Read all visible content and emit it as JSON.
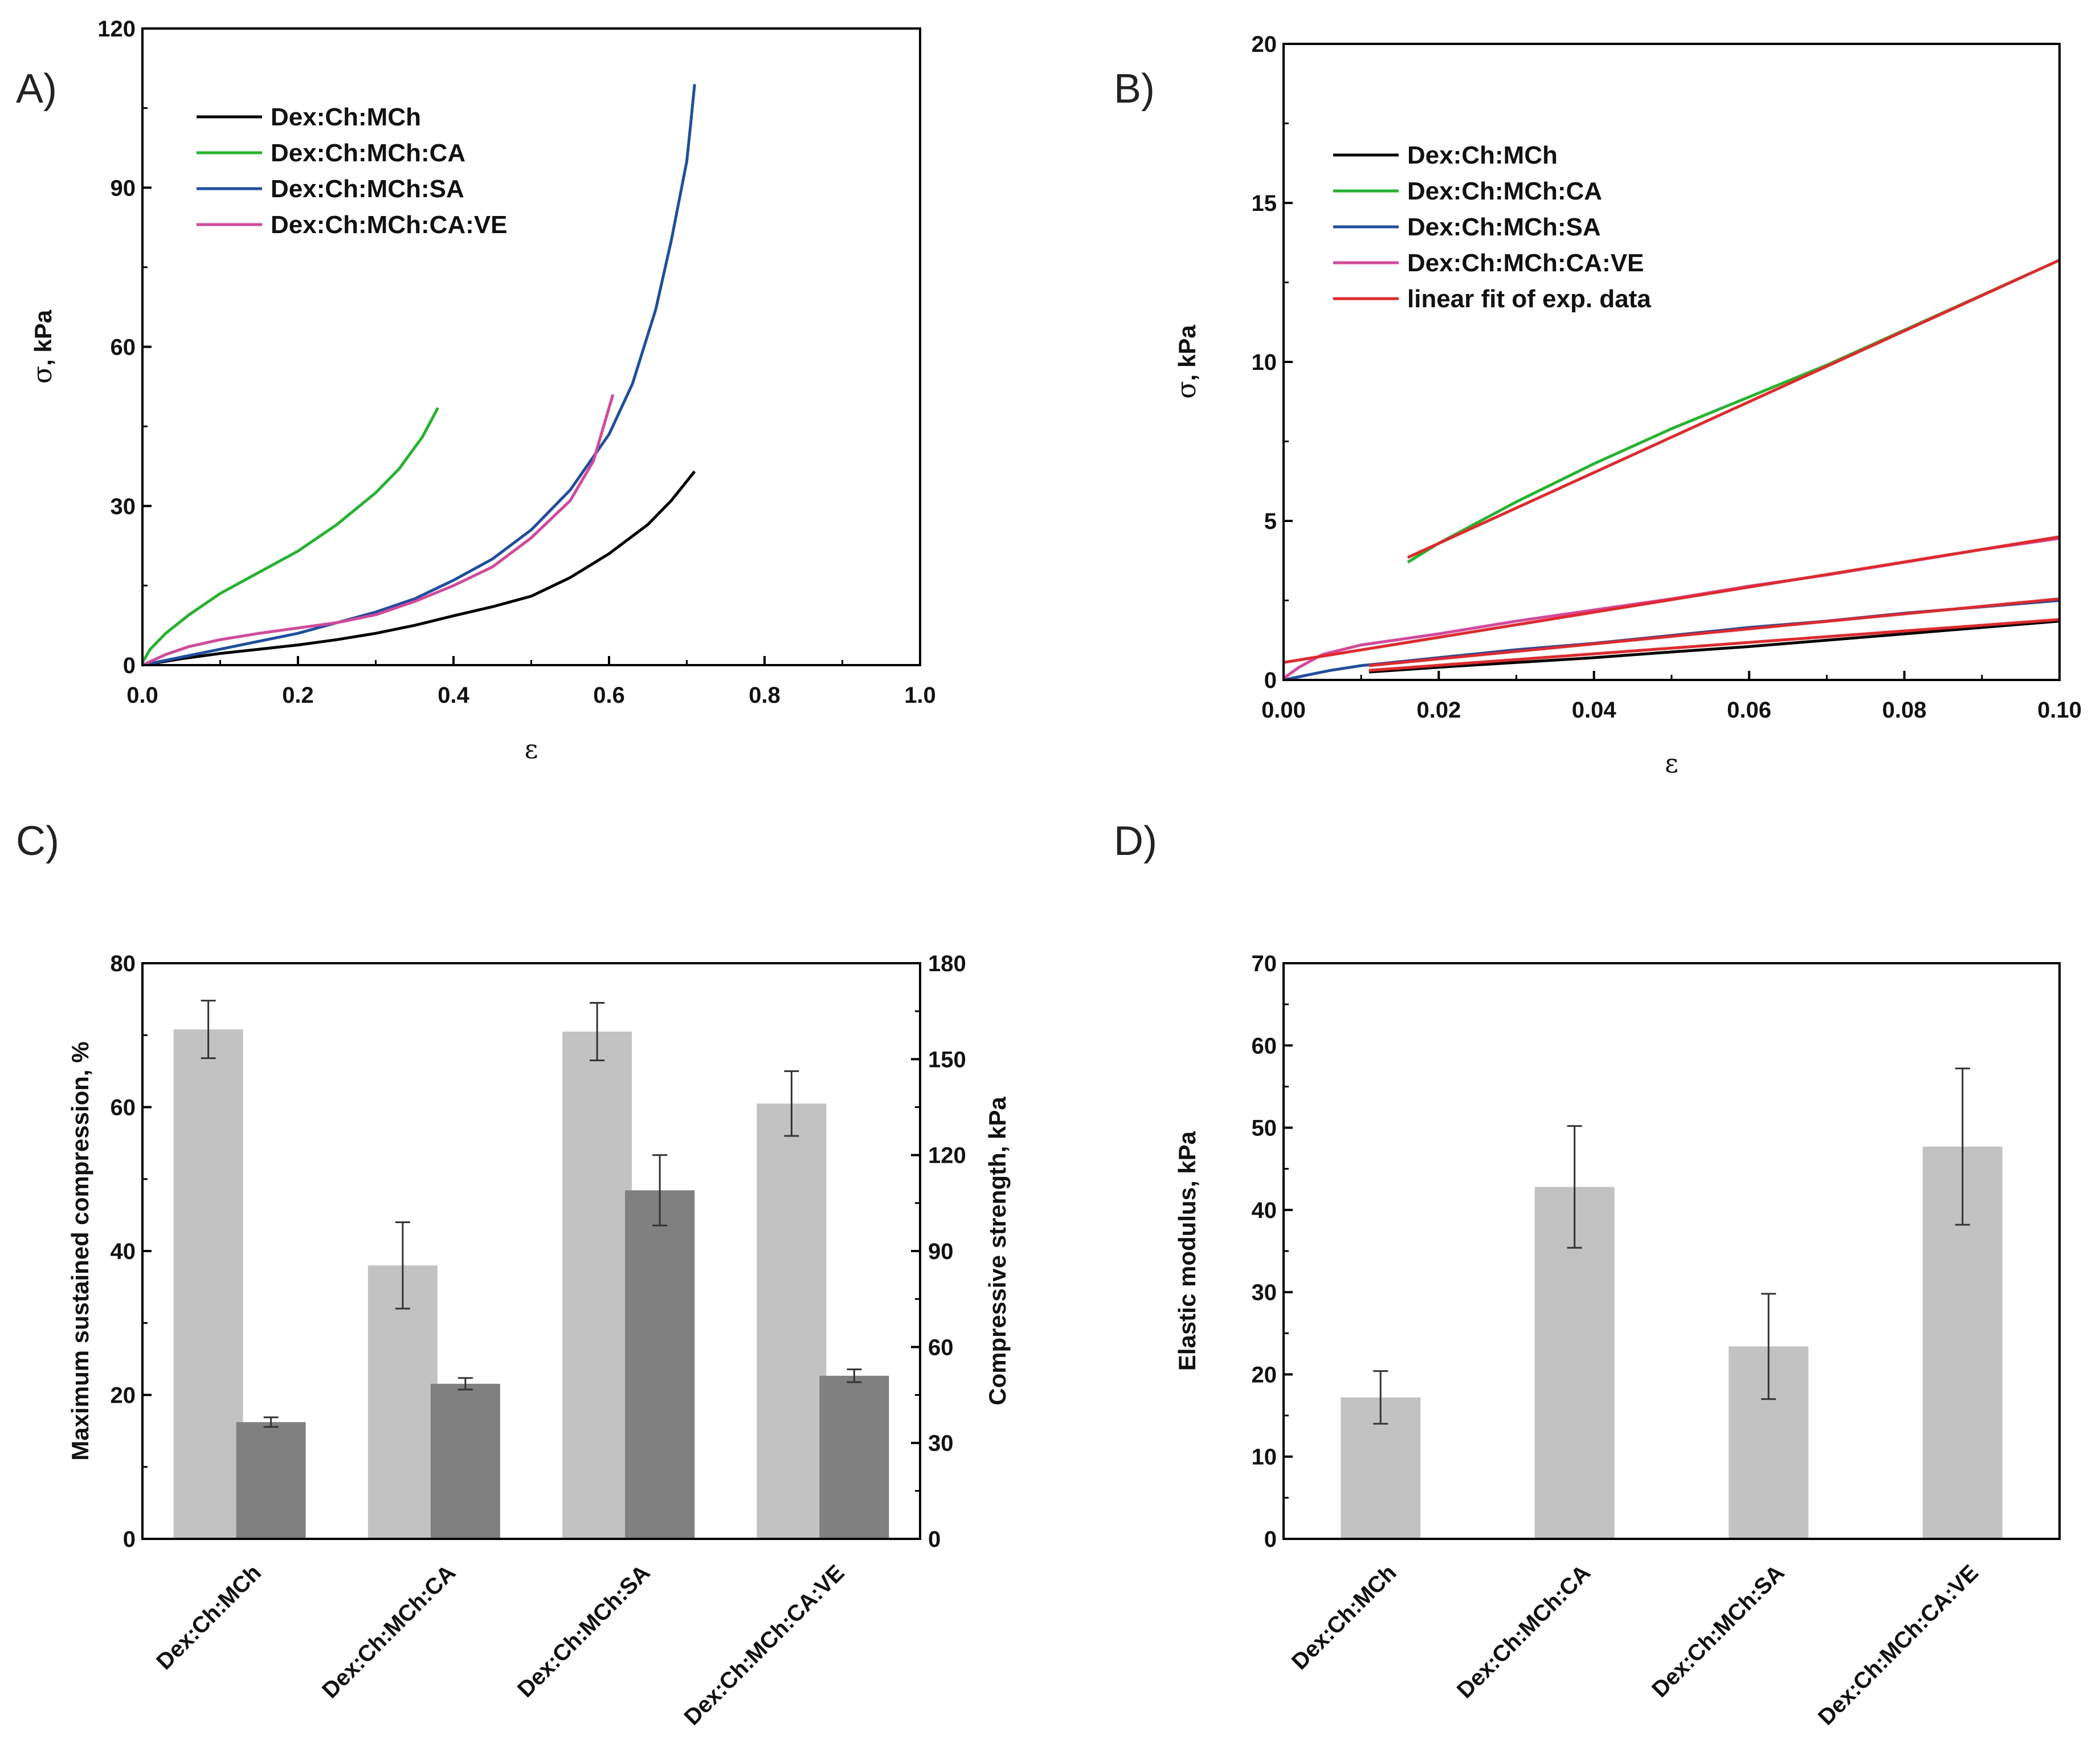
{
  "panels": {
    "A": {
      "label": "A)",
      "chart_data": {
        "type": "line",
        "xlabel": "ε",
        "ylabel_symbol": "σ",
        "ylabel_unit": ", kPa",
        "xlim": [
          0,
          1.0
        ],
        "ylim": [
          0,
          120
        ],
        "xticks": [
          "0.0",
          "0.2",
          "0.4",
          "0.6",
          "0.8",
          "1.0"
        ],
        "yticks": [
          "0",
          "30",
          "60",
          "90",
          "120"
        ],
        "legend_position": "top-left",
        "series": [
          {
            "name": "Dex:Ch:MCh",
            "color": "#000000",
            "points": [
              [
                0,
                0
              ],
              [
                0.05,
                1.2
              ],
              [
                0.1,
                2.2
              ],
              [
                0.15,
                3.0
              ],
              [
                0.2,
                3.8
              ],
              [
                0.25,
                4.8
              ],
              [
                0.3,
                6.0
              ],
              [
                0.35,
                7.5
              ],
              [
                0.4,
                9.3
              ],
              [
                0.45,
                11.0
              ],
              [
                0.5,
                13.0
              ],
              [
                0.55,
                16.5
              ],
              [
                0.6,
                21.0
              ],
              [
                0.65,
                26.5
              ],
              [
                0.68,
                31.0
              ],
              [
                0.71,
                36.5
              ]
            ]
          },
          {
            "name": "Dex:Ch:MCh:CA",
            "color": "#1fb62a",
            "points": [
              [
                0,
                0.5
              ],
              [
                0.01,
                3.0
              ],
              [
                0.03,
                6.0
              ],
              [
                0.06,
                9.5
              ],
              [
                0.1,
                13.5
              ],
              [
                0.15,
                17.5
              ],
              [
                0.2,
                21.5
              ],
              [
                0.25,
                26.5
              ],
              [
                0.3,
                32.5
              ],
              [
                0.33,
                37.0
              ],
              [
                0.36,
                43.0
              ],
              [
                0.38,
                48.5
              ]
            ]
          },
          {
            "name": "Dex:Ch:MCh:SA",
            "color": "#1c4fa3",
            "points": [
              [
                0,
                0
              ],
              [
                0.05,
                1.5
              ],
              [
                0.1,
                3.0
              ],
              [
                0.15,
                4.5
              ],
              [
                0.2,
                6.0
              ],
              [
                0.25,
                8.0
              ],
              [
                0.3,
                10.0
              ],
              [
                0.35,
                12.5
              ],
              [
                0.4,
                16.0
              ],
              [
                0.45,
                20.0
              ],
              [
                0.5,
                25.5
              ],
              [
                0.55,
                33.0
              ],
              [
                0.6,
                43.5
              ],
              [
                0.63,
                53.0
              ],
              [
                0.66,
                67.0
              ],
              [
                0.68,
                80.0
              ],
              [
                0.7,
                95.0
              ],
              [
                0.705,
                102.0
              ],
              [
                0.71,
                109.5
              ]
            ]
          },
          {
            "name": "Dex:Ch:MCh:CA:VE",
            "color": "#d8469b",
            "points": [
              [
                0,
                0
              ],
              [
                0.03,
                2.0
              ],
              [
                0.06,
                3.5
              ],
              [
                0.1,
                4.8
              ],
              [
                0.15,
                6.0
              ],
              [
                0.2,
                7.0
              ],
              [
                0.25,
                8.0
              ],
              [
                0.3,
                9.5
              ],
              [
                0.35,
                12.0
              ],
              [
                0.4,
                15.0
              ],
              [
                0.45,
                18.5
              ],
              [
                0.5,
                24.0
              ],
              [
                0.55,
                31.0
              ],
              [
                0.58,
                38.5
              ],
              [
                0.605,
                51.0
              ]
            ]
          }
        ]
      }
    },
    "B": {
      "label": "B)",
      "chart_data": {
        "type": "line",
        "xlabel": "ε",
        "ylabel_symbol": "σ",
        "ylabel_unit": ", kPa",
        "xlim": [
          0,
          0.1
        ],
        "ylim": [
          0,
          20
        ],
        "xticks": [
          "0.00",
          "0.02",
          "0.04",
          "0.06",
          "0.08",
          "0.10"
        ],
        "yticks": [
          "0",
          "5",
          "10",
          "15",
          "20"
        ],
        "legend_position": "top-left",
        "series": [
          {
            "name": "Dex:Ch:MCh",
            "color": "#000000",
            "points": [
              [
                0.011,
                0.25
              ],
              [
                0.02,
                0.4
              ],
              [
                0.03,
                0.55
              ],
              [
                0.04,
                0.7
              ],
              [
                0.05,
                0.88
              ],
              [
                0.06,
                1.05
              ],
              [
                0.07,
                1.25
              ],
              [
                0.08,
                1.45
              ],
              [
                0.09,
                1.65
              ],
              [
                0.1,
                1.85
              ]
            ]
          },
          {
            "name": "Dex:Ch:MCh:CA",
            "color": "#1fb62a",
            "points": [
              [
                0.016,
                3.7
              ],
              [
                0.02,
                4.3
              ],
              [
                0.03,
                5.6
              ],
              [
                0.04,
                6.8
              ],
              [
                0.05,
                7.9
              ],
              [
                0.06,
                8.9
              ],
              [
                0.07,
                9.9
              ],
              [
                0.08,
                11.0
              ],
              [
                0.09,
                12.1
              ],
              [
                0.1,
                13.2
              ]
            ]
          },
          {
            "name": "Dex:Ch:MCh:SA",
            "color": "#1c4fa3",
            "points": [
              [
                0,
                0
              ],
              [
                0.003,
                0.15
              ],
              [
                0.006,
                0.3
              ],
              [
                0.01,
                0.45
              ],
              [
                0.02,
                0.7
              ],
              [
                0.03,
                0.95
              ],
              [
                0.04,
                1.15
              ],
              [
                0.05,
                1.4
              ],
              [
                0.06,
                1.65
              ],
              [
                0.07,
                1.85
              ],
              [
                0.08,
                2.1
              ],
              [
                0.09,
                2.3
              ],
              [
                0.1,
                2.5
              ]
            ]
          },
          {
            "name": "Dex:Ch:MCh:CA:VE",
            "color": "#d8469b",
            "points": [
              [
                0,
                0.05
              ],
              [
                0.002,
                0.4
              ],
              [
                0.005,
                0.8
              ],
              [
                0.01,
                1.1
              ],
              [
                0.02,
                1.45
              ],
              [
                0.03,
                1.85
              ],
              [
                0.04,
                2.2
              ],
              [
                0.05,
                2.55
              ],
              [
                0.06,
                2.95
              ],
              [
                0.07,
                3.3
              ],
              [
                0.08,
                3.7
              ],
              [
                0.09,
                4.1
              ],
              [
                0.1,
                4.45
              ]
            ]
          },
          {
            "name": "linear fit of exp. data",
            "color": "#e8262a",
            "points": [
              [
                0.016,
                3.85
              ],
              [
                0.1,
                13.2
              ]
            ],
            "extra_lines": [
              [
                [
                  0.011,
                  0.45
                ],
                [
                  0.1,
                  2.55
                ]
              ],
              [
                [
                  0,
                  0.55
                ],
                [
                  0.1,
                  4.5
                ]
              ],
              [
                [
                  0.011,
                  0.3
                ],
                [
                  0.1,
                  1.9
                ]
              ]
            ]
          }
        ]
      }
    },
    "C": {
      "label": "C)",
      "chart_data": {
        "type": "bar",
        "categories": [
          "Dex:Ch:MCh",
          "Dex:Ch:MCh:CA",
          "Dex:Ch:MCh:SA",
          "Dex:Ch:MCh:CA:VE"
        ],
        "ylabel": "Maximum sustained compression, %",
        "y2label": "Compressive strength, kPa",
        "ylim": [
          0,
          80
        ],
        "y2lim": [
          0,
          180
        ],
        "yticks": [
          "0",
          "20",
          "40",
          "60",
          "80"
        ],
        "y2ticks": [
          "0",
          "30",
          "60",
          "90",
          "120",
          "150",
          "180"
        ],
        "series": [
          {
            "name": "Maximum sustained compression",
            "axis": "left",
            "color": "#c2c2c2",
            "values": [
              70.8,
              38.0,
              70.5,
              60.5
            ],
            "errors": [
              4.0,
              6.0,
              4.0,
              4.5
            ]
          },
          {
            "name": "Compressive strength",
            "axis": "right",
            "color": "#808080",
            "values": [
              36.5,
              48.5,
              109.0,
              51.0
            ],
            "errors": [
              1.5,
              1.8,
              11.0,
              2.0
            ]
          }
        ]
      }
    },
    "D": {
      "label": "D)",
      "chart_data": {
        "type": "bar",
        "categories": [
          "Dex:Ch:MCh",
          "Dex:Ch:MCh:CA",
          "Dex:Ch:MCh:SA",
          "Dex:Ch:MCh:CA:VE"
        ],
        "ylabel": "Elastic modulus, kPa",
        "ylim": [
          0,
          70
        ],
        "yticks": [
          "0",
          "10",
          "20",
          "30",
          "40",
          "50",
          "60",
          "70"
        ],
        "series": [
          {
            "name": "Elastic modulus",
            "color": "#c2c2c2",
            "values": [
              17.2,
              42.8,
              23.4,
              47.7
            ],
            "errors": [
              3.2,
              7.4,
              6.4,
              9.5
            ]
          }
        ]
      }
    }
  }
}
